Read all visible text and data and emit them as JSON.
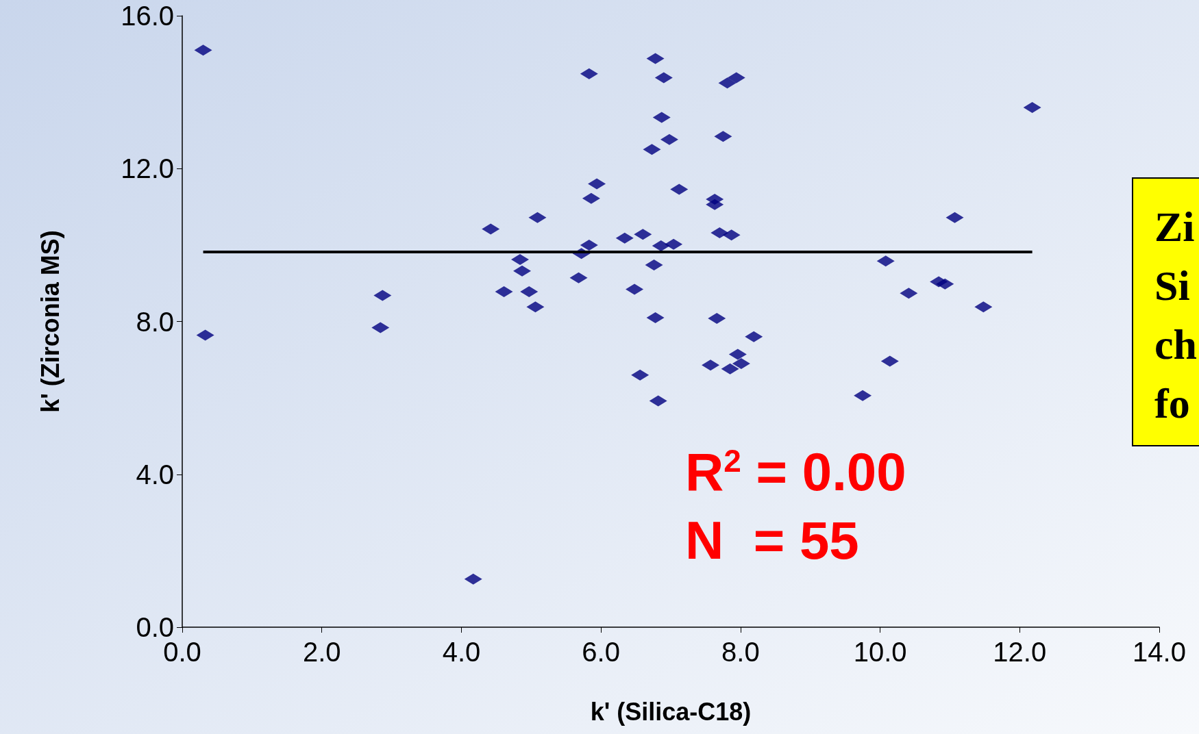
{
  "chart_data": {
    "type": "scatter",
    "xlabel": "k' (Silica-C18)",
    "ylabel": "k' (Zirconia MS)",
    "marker": "diamond",
    "grid": false,
    "xlim": [
      0,
      14
    ],
    "xticks": [
      {
        "value": 0,
        "label": "0.0"
      },
      {
        "value": 2,
        "label": "2.0"
      },
      {
        "value": 4,
        "label": "4.0"
      },
      {
        "value": 6,
        "label": "6.0"
      },
      {
        "value": 8,
        "label": "8.0"
      },
      {
        "value": 10,
        "label": "10.0"
      },
      {
        "value": 12,
        "label": "12.0"
      },
      {
        "value": 14,
        "label": "14.0"
      }
    ],
    "ylim": [
      0,
      16
    ],
    "yticks": [
      {
        "value": 0,
        "label": "0.0"
      },
      {
        "value": 4,
        "label": "4.0"
      },
      {
        "value": 8,
        "label": "8.0"
      },
      {
        "value": 12,
        "label": "12.0"
      },
      {
        "value": 16,
        "label": "16.0"
      }
    ],
    "series": [
      {
        "color": "#000080",
        "x": [
          0.3,
          0.33,
          2.84,
          2.87,
          4.17,
          4.42,
          4.61,
          4.84,
          4.87,
          4.97,
          5.06,
          5.09,
          5.68,
          5.72,
          5.83,
          5.83,
          5.86,
          5.94,
          6.34,
          6.48,
          6.56,
          6.6,
          6.73,
          6.76,
          6.78,
          6.78,
          6.82,
          6.86,
          6.87,
          6.9,
          6.98,
          7.04,
          7.12,
          7.57,
          7.63,
          7.63,
          7.66,
          7.7,
          7.75,
          7.81,
          7.94,
          7.87,
          7.85,
          7.96,
          8.01,
          8.19,
          9.75,
          10.08,
          10.14,
          10.41,
          10.84,
          10.93,
          11.07,
          11.48,
          12.18
        ],
        "values": [
          15.1,
          7.64,
          7.84,
          8.68,
          1.26,
          10.42,
          8.78,
          9.62,
          9.32,
          8.78,
          8.38,
          10.72,
          9.14,
          9.78,
          10.0,
          14.48,
          11.22,
          11.6,
          10.18,
          8.84,
          6.6,
          10.28,
          12.5,
          9.48,
          14.88,
          8.1,
          5.92,
          9.98,
          13.34,
          14.38,
          12.76,
          10.02,
          11.46,
          6.86,
          11.2,
          11.06,
          8.08,
          10.32,
          12.84,
          14.24,
          14.38,
          10.26,
          6.76,
          7.14,
          6.9,
          7.6,
          6.06,
          9.58,
          6.96,
          8.74,
          9.04,
          8.98,
          10.72,
          8.38,
          13.6
        ]
      },
      {
        "type": "line",
        "color": "#000000",
        "marker": "none",
        "line_style": "solid",
        "x": [
          0.3,
          12.18
        ],
        "values": [
          9.82,
          9.82
        ]
      }
    ],
    "annotations": [
      "R$^{2}$ = 0.00",
      "N  = 55",
      "Zi\nSi\nch\nfo"
    ]
  }
}
